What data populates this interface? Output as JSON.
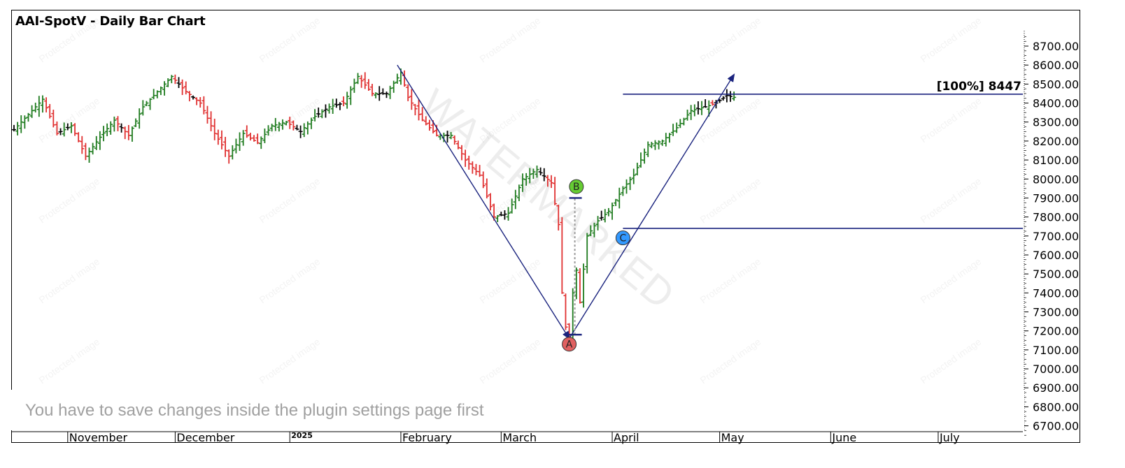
{
  "title": "AAI-SpotV - Daily Bar Chart",
  "watermark": "WATERMARKED",
  "protected_text": "Protected image",
  "notice": "You have to save changes inside the plugin settings page first",
  "colors": {
    "up": "#1e7b1e",
    "down": "#e03030",
    "neutral": "#000000",
    "annotation": "#1a237e",
    "label_a": "#e06060",
    "label_b": "#66cc33",
    "label_c": "#3399ff"
  },
  "chart_data": {
    "type": "bar",
    "title": "AAI-SpotV - Daily Bar Chart",
    "ylim": [
      6650,
      8770
    ],
    "y_ticks": [
      "8700.00",
      "8600.00",
      "8500.00",
      "8400.00",
      "8300.00",
      "8200.00",
      "8100.00",
      "8000.00",
      "7900.00",
      "7800.00",
      "7700.00",
      "7600.00",
      "7500.00",
      "7400.00",
      "7300.00",
      "7200.00",
      "7100.00",
      "7000.00",
      "6900.00",
      "6800.00",
      "6700.00"
    ],
    "x_labels": [
      {
        "label": "November",
        "day": 15
      },
      {
        "label": "December",
        "day": 45
      },
      {
        "label": "2025",
        "day": 77
      },
      {
        "label": "February",
        "day": 108
      },
      {
        "label": "March",
        "day": 136
      },
      {
        "label": "April",
        "day": 167
      },
      {
        "label": "May",
        "day": 197
      },
      {
        "label": "June",
        "day": 228
      },
      {
        "label": "July",
        "day": 258
      }
    ],
    "ohlc_anchors": [
      [
        0,
        8260
      ],
      [
        5,
        8360
      ],
      [
        8,
        8420
      ],
      [
        12,
        8240
      ],
      [
        16,
        8280
      ],
      [
        20,
        8120
      ],
      [
        24,
        8220
      ],
      [
        28,
        8310
      ],
      [
        32,
        8230
      ],
      [
        36,
        8380
      ],
      [
        40,
        8460
      ],
      [
        44,
        8540
      ],
      [
        48,
        8460
      ],
      [
        52,
        8400
      ],
      [
        56,
        8240
      ],
      [
        60,
        8120
      ],
      [
        64,
        8240
      ],
      [
        68,
        8190
      ],
      [
        72,
        8280
      ],
      [
        76,
        8300
      ],
      [
        80,
        8250
      ],
      [
        84,
        8330
      ],
      [
        88,
        8380
      ],
      [
        92,
        8400
      ],
      [
        96,
        8540
      ],
      [
        100,
        8450
      ],
      [
        104,
        8450
      ],
      [
        108,
        8560
      ],
      [
        110,
        8430
      ],
      [
        114,
        8310
      ],
      [
        118,
        8230
      ],
      [
        122,
        8230
      ],
      [
        126,
        8100
      ],
      [
        130,
        8020
      ],
      [
        134,
        7800
      ],
      [
        138,
        7820
      ],
      [
        142,
        8000
      ],
      [
        146,
        8050
      ],
      [
        150,
        7980
      ],
      [
        152,
        7760
      ],
      [
        153,
        7400
      ],
      [
        154,
        7220
      ],
      [
        155,
        7160
      ],
      [
        156,
        7400
      ],
      [
        157,
        7520
      ],
      [
        158,
        7350
      ],
      [
        160,
        7700
      ],
      [
        163,
        7780
      ],
      [
        166,
        7830
      ],
      [
        170,
        7950
      ],
      [
        173,
        8020
      ],
      [
        177,
        8180
      ],
      [
        181,
        8200
      ],
      [
        185,
        8270
      ],
      [
        189,
        8360
      ],
      [
        193,
        8380
      ],
      [
        196,
        8400
      ],
      [
        199,
        8440
      ],
      [
        201,
        8430
      ]
    ],
    "points": [
      {
        "label": "A",
        "day": 155,
        "value": 7130
      },
      {
        "label": "B",
        "day": 157,
        "value": 7960
      },
      {
        "label": "C",
        "day": 170,
        "value": 7690
      }
    ],
    "lines": [
      {
        "from": {
          "day": 107,
          "value": 8600
        },
        "to": {
          "day": 155,
          "value": 7160
        }
      },
      {
        "from": {
          "day": 155,
          "value": 7160
        },
        "to": {
          "day": 201,
          "value": 8550
        }
      }
    ],
    "horizontal_levels": [
      {
        "value": 8447,
        "label": "[100%] 8447",
        "from_day": 170
      },
      {
        "value": 7740,
        "from_day": 170
      }
    ]
  }
}
